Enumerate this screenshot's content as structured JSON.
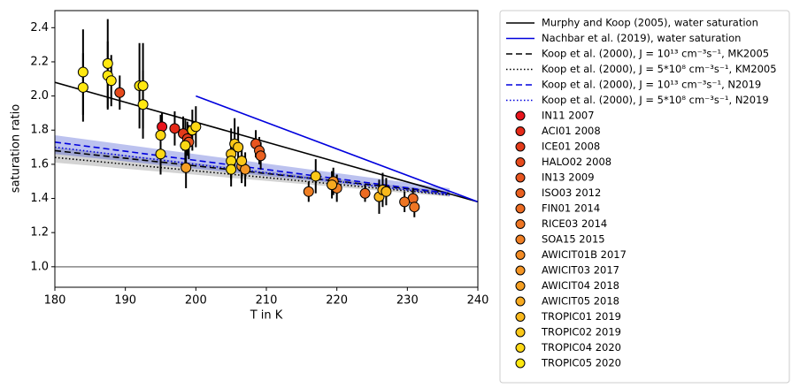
{
  "chart_data": {
    "type": "scatter",
    "xlabel": "T in K",
    "ylabel": "saturation ratio",
    "xlim": [
      180,
      240
    ],
    "ylim": [
      0.88,
      2.5
    ],
    "xticks": [
      180,
      190,
      200,
      210,
      220,
      230,
      240
    ],
    "yticks": [
      {
        "value": 1,
        "label": "1.0"
      },
      1.2,
      1.4,
      1.6,
      1.8,
      {
        "value": 2,
        "label": "2.0"
      },
      2.2,
      2.4
    ],
    "reference_line": {
      "y": 1,
      "color": "#888888"
    },
    "lines": [
      {
        "name": "Murphy and Koop (2005), water saturation",
        "color": "#000000",
        "dash": "solid",
        "x": [
          180,
          240
        ],
        "y": [
          2.08,
          1.38
        ]
      },
      {
        "name": "Nachbar et al. (2019), water saturation",
        "color": "#0000dd",
        "dash": "solid",
        "x": [
          200,
          240
        ],
        "y": [
          2.0,
          1.38
        ]
      },
      {
        "name": "Koop et al. (2000), J = 10¹³ cm⁻³s⁻¹, MK2005",
        "color": "#000000",
        "dash": "dashed",
        "x": [
          180,
          236
        ],
        "y": [
          1.68,
          1.43
        ],
        "y_low": [
          1.61,
          1.41
        ],
        "y_high": [
          1.7,
          1.44
        ],
        "band_color": "#808080"
      },
      {
        "name": "Koop et al. (2000), J = 5*10⁸ cm⁻³s⁻¹, KM2005",
        "color": "#000000",
        "dash": "dotted",
        "x": [
          180,
          236
        ],
        "y": [
          1.64,
          1.42
        ]
      },
      {
        "name": "Koop et al. (2000), J = 10¹³ cm⁻³s⁻¹, N2019",
        "color": "#0000dd",
        "dash": "dashed",
        "x": [
          180,
          236
        ],
        "y": [
          1.73,
          1.43
        ],
        "y_low": [
          1.66,
          1.42
        ],
        "y_high": [
          1.77,
          1.46
        ],
        "band_color": "#4050d0"
      },
      {
        "name": "Koop et al. (2000), J = 5*10⁸ cm⁻³s⁻¹, N2019",
        "color": "#0000dd",
        "dash": "dotted",
        "x": [
          180,
          236
        ],
        "y": [
          1.7,
          1.42
        ]
      }
    ],
    "series": [
      {
        "name": "IN11 2007",
        "color": "#e8141c",
        "x": [
          195.2
        ],
        "values": [
          1.82
        ],
        "errors": [
          0.08
        ]
      },
      {
        "name": "ACI01 2008",
        "color": "#e52a18",
        "x": [
          197
        ],
        "values": [
          1.81
        ],
        "errors": [
          0.1
        ]
      },
      {
        "name": "ICE01 2008",
        "color": "#e33b1a",
        "x": [
          198.2,
          198.8
        ],
        "values": [
          1.78,
          1.75
        ],
        "errors": [
          0.1,
          0.1
        ]
      },
      {
        "name": "HALO02 2008",
        "color": "#e64a1c",
        "x": [
          189.2
        ],
        "values": [
          2.02
        ],
        "errors": [
          0.1
        ]
      },
      {
        "name": "IN13 2009",
        "color": "#e8551f",
        "x": [
          199,
          208.5
        ],
        "values": [
          1.73,
          1.72
        ],
        "errors": [
          0.1,
          0.08
        ]
      },
      {
        "name": "ISO03 2012",
        "color": "#ea6020",
        "x": [
          209,
          209.2
        ],
        "values": [
          1.68,
          1.65
        ],
        "errors": [
          0.08,
          0.08
        ]
      },
      {
        "name": "FIN01 2014",
        "color": "#ec6b22",
        "x": [
          224,
          230.8
        ],
        "values": [
          1.43,
          1.4
        ],
        "errors": [
          0.05,
          0.06
        ]
      },
      {
        "name": "RICE03 2014",
        "color": "#ee7624",
        "x": [
          229.6,
          231
        ],
        "values": [
          1.38,
          1.35
        ],
        "errors": [
          0.06,
          0.06
        ]
      },
      {
        "name": "SOA15 2015",
        "color": "#f07f24",
        "x": [
          216,
          220
        ],
        "values": [
          1.44,
          1.46
        ],
        "errors": [
          0.06,
          0.08
        ]
      },
      {
        "name": "AWICIT01B 2017",
        "color": "#f28b24",
        "x": [
          219.5
        ],
        "values": [
          1.5
        ],
        "errors": [
          0.08
        ]
      },
      {
        "name": "AWICIT03 2017",
        "color": "#f49524",
        "x": [
          206.5,
          207
        ],
        "values": [
          1.59,
          1.57
        ],
        "errors": [
          0.1,
          0.1
        ]
      },
      {
        "name": "AWICIT04 2018",
        "color": "#f59f22",
        "x": [
          198.6
        ],
        "values": [
          1.58
        ],
        "errors": [
          0.12
        ]
      },
      {
        "name": "AWICIT05 2018",
        "color": "#f7aa20",
        "x": [
          219.3
        ],
        "values": [
          1.48
        ],
        "errors": [
          0.08
        ]
      },
      {
        "name": "TROPIC01 2019",
        "color": "#f9b81c",
        "x": [
          226,
          226.5,
          227
        ],
        "values": [
          1.41,
          1.45,
          1.44
        ],
        "errors": [
          0.1,
          0.1,
          0.08
        ]
      },
      {
        "name": "TROPIC02 2019",
        "color": "#fbc818",
        "x": [
          205,
          205.5,
          206,
          206.5,
          217
        ],
        "values": [
          1.66,
          1.72,
          1.7,
          1.62,
          1.53
        ],
        "errors": [
          0.15,
          0.15,
          0.12,
          0.1,
          0.1
        ]
      },
      {
        "name": "TROPIC04 2020",
        "color": "#fdd814",
        "x": [
          195,
          195,
          198.5,
          199.5,
          200,
          205,
          205
        ],
        "values": [
          1.77,
          1.66,
          1.71,
          1.8,
          1.82,
          1.62,
          1.57
        ],
        "errors": [
          0.12,
          0.12,
          0.15,
          0.12,
          0.12,
          0.1,
          0.1
        ]
      },
      {
        "name": "TROPIC05 2020",
        "color": "#ffe810",
        "x": [
          184,
          184,
          187.5,
          187.5,
          188,
          192,
          192.5,
          192.5
        ],
        "values": [
          2.14,
          2.05,
          2.19,
          2.12,
          2.09,
          2.06,
          2.06,
          1.95
        ],
        "errors": [
          0.25,
          0.2,
          0.26,
          0.2,
          0.15,
          0.25,
          0.25,
          0.2
        ]
      }
    ]
  }
}
